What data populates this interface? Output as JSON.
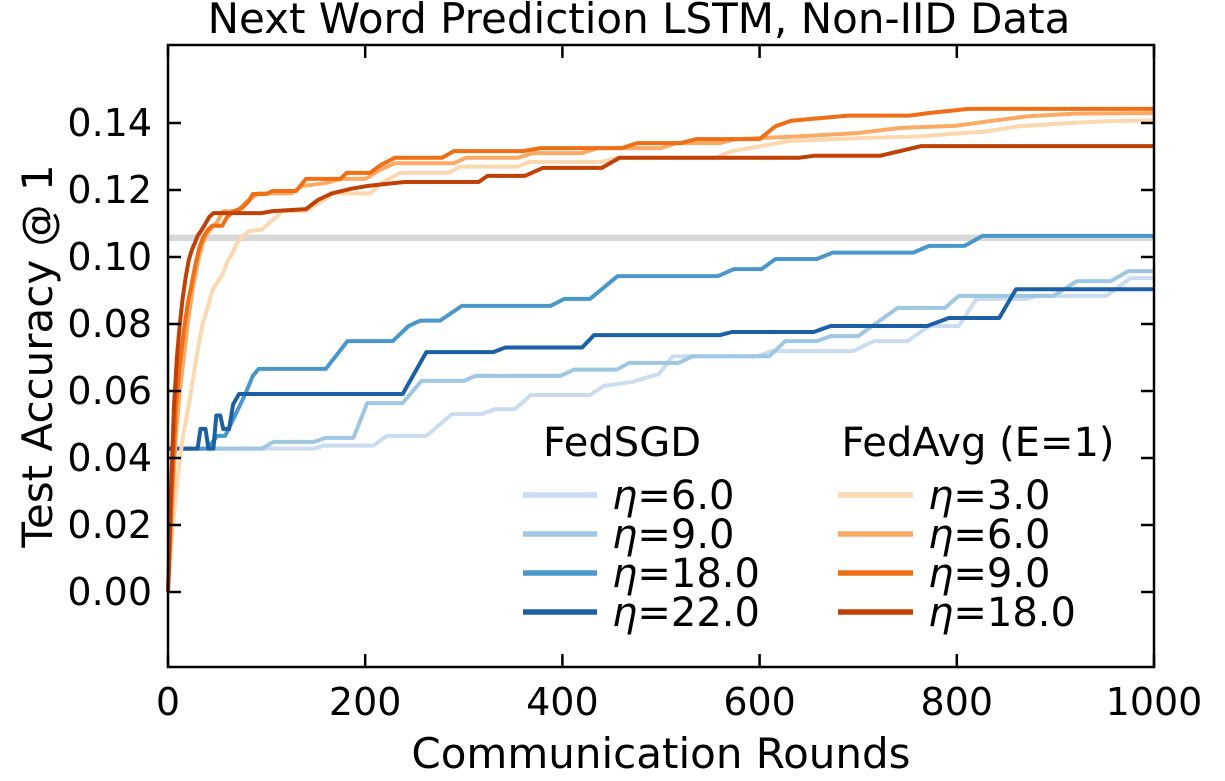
{
  "figure": {
    "title": "Next Word Prediction LSTM, Non-IID Data"
  },
  "axes": {
    "xlabel": "Communication Rounds",
    "ylabel": "Test Accuracy @ 1",
    "xticks": [
      0,
      200,
      400,
      600,
      800,
      1000
    ],
    "ytick_labels": [
      "0.00",
      "0.02",
      "0.04",
      "0.06",
      "0.08",
      "0.10",
      "0.12",
      "0.14"
    ],
    "ytick_values": [
      0.0,
      0.02,
      0.04,
      0.06,
      0.08,
      0.1,
      0.12,
      0.14
    ]
  },
  "legend": {
    "groups": [
      {
        "title": "FedSGD",
        "entries": [
          {
            "label": "η=6.0",
            "color": "#cadcef"
          },
          {
            "label": "η=9.0",
            "color": "#9fc7e2"
          },
          {
            "label": "η=18.0",
            "color": "#4a97cc"
          },
          {
            "label": "η=22.0",
            "color": "#1b60a5"
          }
        ]
      },
      {
        "title": "FedAvg (E=1)",
        "entries": [
          {
            "label": "η=3.0",
            "color": "#fcd8b0"
          },
          {
            "label": "η=6.0",
            "color": "#fbaa65"
          },
          {
            "label": "η=9.0",
            "color": "#ee6f15"
          },
          {
            "label": "η=18.0",
            "color": "#bf4105"
          }
        ]
      }
    ]
  },
  "chart_data": {
    "type": "line",
    "title": "Next Word Prediction LSTM, Non-IID Data",
    "xlabel": "Communication Rounds",
    "ylabel": "Test Accuracy @ 1",
    "xlim": [
      0,
      1000
    ],
    "ylim": [
      -0.022,
      0.165
    ],
    "grid": false,
    "legend_position": "lower center inside, two columns",
    "baseline": {
      "name": "target-accuracy-line",
      "value": 0.1057,
      "color": "#d8d8d8",
      "linewidth": 6.5
    },
    "series": [
      {
        "name": "FedSGD η=6.0",
        "group": "FedSGD",
        "color": "#cadcef",
        "points": [
          [
            0,
            0.0428
          ],
          [
            148,
            0.0428
          ],
          [
            158,
            0.0437
          ],
          [
            208,
            0.0437
          ],
          [
            222,
            0.0466
          ],
          [
            262,
            0.0466
          ],
          [
            288,
            0.0531
          ],
          [
            318,
            0.0531
          ],
          [
            332,
            0.0546
          ],
          [
            352,
            0.0546
          ],
          [
            368,
            0.0588
          ],
          [
            428,
            0.0588
          ],
          [
            442,
            0.0615
          ],
          [
            472,
            0.0628
          ],
          [
            498,
            0.0651
          ],
          [
            512,
            0.0704
          ],
          [
            598,
            0.0704
          ],
          [
            612,
            0.0719
          ],
          [
            695,
            0.0719
          ],
          [
            716,
            0.0749
          ],
          [
            750,
            0.0749
          ],
          [
            772,
            0.0794
          ],
          [
            802,
            0.0794
          ],
          [
            820,
            0.0875
          ],
          [
            870,
            0.0875
          ],
          [
            882,
            0.0884
          ],
          [
            952,
            0.0884
          ],
          [
            976,
            0.0937
          ],
          [
            1000,
            0.0937
          ]
        ]
      },
      {
        "name": "FedSGD η=9.0",
        "group": "FedSGD",
        "color": "#9fc7e2",
        "points": [
          [
            0,
            0.0428
          ],
          [
            95,
            0.0428
          ],
          [
            107,
            0.0448
          ],
          [
            148,
            0.0448
          ],
          [
            160,
            0.046
          ],
          [
            188,
            0.046
          ],
          [
            202,
            0.0564
          ],
          [
            238,
            0.0564
          ],
          [
            257,
            0.063
          ],
          [
            300,
            0.063
          ],
          [
            312,
            0.0645
          ],
          [
            398,
            0.0645
          ],
          [
            412,
            0.0664
          ],
          [
            455,
            0.0664
          ],
          [
            468,
            0.0684
          ],
          [
            518,
            0.0684
          ],
          [
            532,
            0.0704
          ],
          [
            610,
            0.0704
          ],
          [
            626,
            0.0749
          ],
          [
            658,
            0.0749
          ],
          [
            672,
            0.0764
          ],
          [
            700,
            0.0764
          ],
          [
            740,
            0.0848
          ],
          [
            788,
            0.0848
          ],
          [
            802,
            0.0884
          ],
          [
            898,
            0.0884
          ],
          [
            922,
            0.0928
          ],
          [
            956,
            0.0928
          ],
          [
            974,
            0.0958
          ],
          [
            1000,
            0.0958
          ]
        ]
      },
      {
        "name": "FedSGD η=18.0",
        "group": "FedSGD",
        "color": "#4a97cc",
        "points": [
          [
            0,
            0.0428
          ],
          [
            40,
            0.0428
          ],
          [
            50,
            0.0466
          ],
          [
            58,
            0.0466
          ],
          [
            68,
            0.0527
          ],
          [
            78,
            0.0588
          ],
          [
            86,
            0.0645
          ],
          [
            92,
            0.0666
          ],
          [
            160,
            0.0666
          ],
          [
            182,
            0.0749
          ],
          [
            228,
            0.0749
          ],
          [
            244,
            0.0794
          ],
          [
            256,
            0.081
          ],
          [
            276,
            0.081
          ],
          [
            298,
            0.0854
          ],
          [
            388,
            0.0854
          ],
          [
            402,
            0.0875
          ],
          [
            428,
            0.0875
          ],
          [
            456,
            0.0943
          ],
          [
            558,
            0.0943
          ],
          [
            574,
            0.0964
          ],
          [
            602,
            0.0964
          ],
          [
            616,
            0.0994
          ],
          [
            658,
            0.0994
          ],
          [
            674,
            0.1013
          ],
          [
            756,
            0.1013
          ],
          [
            772,
            0.1033
          ],
          [
            808,
            0.1033
          ],
          [
            826,
            0.1063
          ],
          [
            1000,
            0.1063
          ]
        ]
      },
      {
        "name": "FedSGD η=22.0",
        "group": "FedSGD",
        "color": "#1b60a5",
        "points": [
          [
            0,
            0.0428
          ],
          [
            30,
            0.0428
          ],
          [
            33,
            0.0487
          ],
          [
            38,
            0.0487
          ],
          [
            41,
            0.0428
          ],
          [
            46,
            0.0428
          ],
          [
            49,
            0.0527
          ],
          [
            53,
            0.0527
          ],
          [
            56,
            0.0487
          ],
          [
            62,
            0.0487
          ],
          [
            66,
            0.056
          ],
          [
            72,
            0.0591
          ],
          [
            238,
            0.0591
          ],
          [
            262,
            0.0716
          ],
          [
            330,
            0.0716
          ],
          [
            342,
            0.073
          ],
          [
            420,
            0.073
          ],
          [
            432,
            0.0767
          ],
          [
            560,
            0.0767
          ],
          [
            572,
            0.0776
          ],
          [
            655,
            0.0776
          ],
          [
            672,
            0.0794
          ],
          [
            770,
            0.0794
          ],
          [
            792,
            0.0818
          ],
          [
            843,
            0.0818
          ],
          [
            860,
            0.0904
          ],
          [
            1000,
            0.0904
          ]
        ]
      },
      {
        "name": "FedAvg (E=1) η=3.0",
        "group": "FedAvg (E=1)",
        "color": "#fcd8b0",
        "points": [
          [
            0,
            0.0
          ],
          [
            5,
            0.02
          ],
          [
            10,
            0.035
          ],
          [
            15,
            0.046
          ],
          [
            20,
            0.054
          ],
          [
            25,
            0.063
          ],
          [
            30,
            0.072
          ],
          [
            35,
            0.08
          ],
          [
            40,
            0.0845
          ],
          [
            45,
            0.09
          ],
          [
            50,
            0.0925
          ],
          [
            55,
            0.0945
          ],
          [
            60,
            0.0985
          ],
          [
            65,
            0.101
          ],
          [
            70,
            0.104
          ],
          [
            76,
            0.1063
          ],
          [
            82,
            0.1077
          ],
          [
            95,
            0.1082
          ],
          [
            102,
            0.11
          ],
          [
            110,
            0.112
          ],
          [
            116,
            0.1137
          ],
          [
            140,
            0.1137
          ],
          [
            150,
            0.1155
          ],
          [
            160,
            0.1173
          ],
          [
            168,
            0.119
          ],
          [
            205,
            0.119
          ],
          [
            216,
            0.122
          ],
          [
            235,
            0.1251
          ],
          [
            285,
            0.1251
          ],
          [
            296,
            0.127
          ],
          [
            355,
            0.127
          ],
          [
            366,
            0.1284
          ],
          [
            440,
            0.1284
          ],
          [
            456,
            0.1296
          ],
          [
            555,
            0.1296
          ],
          [
            572,
            0.1316
          ],
          [
            630,
            0.1346
          ],
          [
            700,
            0.1355
          ],
          [
            762,
            0.136
          ],
          [
            830,
            0.1375
          ],
          [
            862,
            0.139
          ],
          [
            902,
            0.1398
          ],
          [
            950,
            0.1405
          ],
          [
            1000,
            0.1408
          ]
        ]
      },
      {
        "name": "FedAvg (E=1) η=6.0",
        "group": "FedAvg (E=1)",
        "color": "#fbaa65",
        "points": [
          [
            0,
            0.0
          ],
          [
            4,
            0.025
          ],
          [
            8,
            0.047
          ],
          [
            12,
            0.06
          ],
          [
            16,
            0.07
          ],
          [
            20,
            0.08
          ],
          [
            25,
            0.0905
          ],
          [
            30,
            0.098
          ],
          [
            35,
            0.104
          ],
          [
            40,
            0.107
          ],
          [
            45,
            0.109
          ],
          [
            50,
            0.1105
          ],
          [
            56,
            0.1137
          ],
          [
            70,
            0.1137
          ],
          [
            80,
            0.1167
          ],
          [
            92,
            0.119
          ],
          [
            125,
            0.119
          ],
          [
            136,
            0.1212
          ],
          [
            158,
            0.122
          ],
          [
            176,
            0.1233
          ],
          [
            200,
            0.1233
          ],
          [
            215,
            0.126
          ],
          [
            230,
            0.128
          ],
          [
            290,
            0.128
          ],
          [
            302,
            0.1296
          ],
          [
            355,
            0.1296
          ],
          [
            370,
            0.131
          ],
          [
            420,
            0.131
          ],
          [
            436,
            0.1325
          ],
          [
            500,
            0.1325
          ],
          [
            516,
            0.134
          ],
          [
            560,
            0.134
          ],
          [
            576,
            0.1352
          ],
          [
            640,
            0.136
          ],
          [
            700,
            0.137
          ],
          [
            742,
            0.1385
          ],
          [
            800,
            0.1392
          ],
          [
            832,
            0.1405
          ],
          [
            872,
            0.142
          ],
          [
            920,
            0.1428
          ],
          [
            1000,
            0.143
          ]
        ]
      },
      {
        "name": "FedAvg (E=1) η=9.0",
        "group": "FedAvg (E=1)",
        "color": "#ee6f15",
        "points": [
          [
            0,
            0.0
          ],
          [
            4,
            0.03
          ],
          [
            8,
            0.055
          ],
          [
            12,
            0.068
          ],
          [
            16,
            0.078
          ],
          [
            20,
            0.086
          ],
          [
            24,
            0.092
          ],
          [
            28,
            0.098
          ],
          [
            32,
            0.103
          ],
          [
            36,
            0.106
          ],
          [
            40,
            0.108
          ],
          [
            45,
            0.1093
          ],
          [
            55,
            0.1093
          ],
          [
            60,
            0.112
          ],
          [
            67,
            0.1137
          ],
          [
            75,
            0.1146
          ],
          [
            82,
            0.1167
          ],
          [
            86,
            0.1188
          ],
          [
            100,
            0.1188
          ],
          [
            106,
            0.1197
          ],
          [
            130,
            0.1197
          ],
          [
            140,
            0.1233
          ],
          [
            175,
            0.1233
          ],
          [
            181,
            0.1251
          ],
          [
            205,
            0.1251
          ],
          [
            216,
            0.1275
          ],
          [
            230,
            0.1296
          ],
          [
            278,
            0.1296
          ],
          [
            290,
            0.1316
          ],
          [
            360,
            0.1316
          ],
          [
            378,
            0.1325
          ],
          [
            460,
            0.1325
          ],
          [
            476,
            0.134
          ],
          [
            520,
            0.134
          ],
          [
            536,
            0.1352
          ],
          [
            600,
            0.1352
          ],
          [
            616,
            0.139
          ],
          [
            632,
            0.1407
          ],
          [
            690,
            0.1422
          ],
          [
            752,
            0.1422
          ],
          [
            772,
            0.143
          ],
          [
            812,
            0.1442
          ],
          [
            1000,
            0.1442
          ]
        ]
      },
      {
        "name": "FedAvg (E=1) η=18.0",
        "group": "FedAvg (E=1)",
        "color": "#bf4105",
        "points": [
          [
            0,
            0.0
          ],
          [
            3,
            0.03
          ],
          [
            6,
            0.055
          ],
          [
            9,
            0.07
          ],
          [
            12,
            0.08
          ],
          [
            15,
            0.088
          ],
          [
            18,
            0.094
          ],
          [
            21,
            0.099
          ],
          [
            24,
            0.102
          ],
          [
            27,
            0.104
          ],
          [
            30,
            0.1063
          ],
          [
            34,
            0.108
          ],
          [
            38,
            0.11
          ],
          [
            42,
            0.112
          ],
          [
            46,
            0.1131
          ],
          [
            95,
            0.1131
          ],
          [
            106,
            0.1137
          ],
          [
            140,
            0.1143
          ],
          [
            152,
            0.117
          ],
          [
            166,
            0.119
          ],
          [
            186,
            0.1204
          ],
          [
            202,
            0.1212
          ],
          [
            240,
            0.1224
          ],
          [
            315,
            0.1224
          ],
          [
            324,
            0.1242
          ],
          [
            362,
            0.1242
          ],
          [
            380,
            0.1266
          ],
          [
            440,
            0.1266
          ],
          [
            458,
            0.1296
          ],
          [
            640,
            0.1296
          ],
          [
            655,
            0.1302
          ],
          [
            722,
            0.1302
          ],
          [
            764,
            0.1331
          ],
          [
            1000,
            0.1331
          ]
        ]
      }
    ]
  }
}
